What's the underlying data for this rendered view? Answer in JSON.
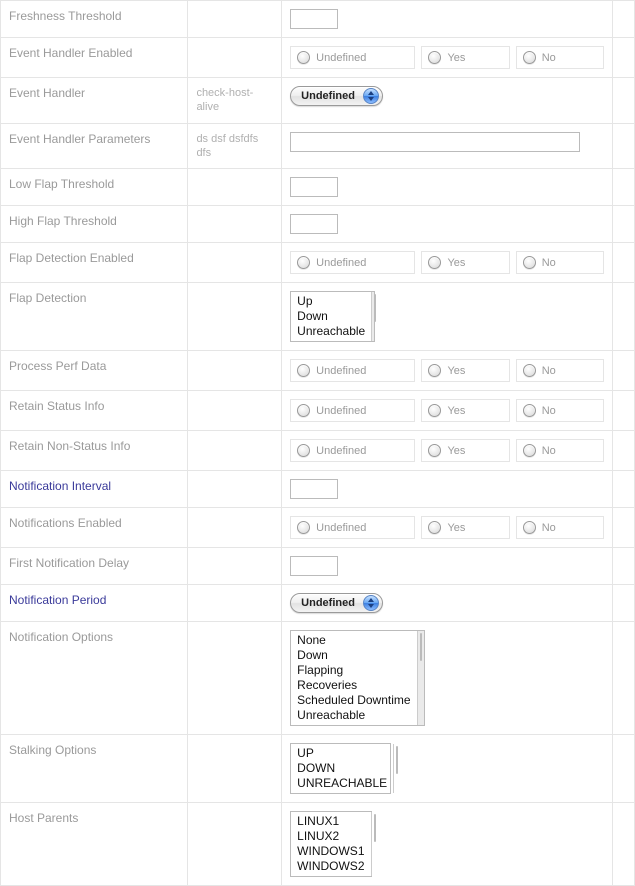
{
  "labels": {
    "freshness_threshold": "Freshness Threshold",
    "event_handler_enabled": "Event Handler Enabled",
    "event_handler": "Event Handler",
    "event_handler_params": "Event Handler Parameters",
    "low_flap": "Low Flap Threshold",
    "high_flap": "High Flap Threshold",
    "flap_detection_enabled": "Flap Detection Enabled",
    "flap_detection": "Flap Detection",
    "process_perf": "Process Perf Data",
    "retain_status": "Retain Status Info",
    "retain_nonstatus": "Retain Non-Status Info",
    "notif_interval": "Notification Interval",
    "notif_enabled": "Notifications Enabled",
    "first_notif_delay": "First Notification Delay",
    "notif_period": "Notification Period",
    "notif_options": "Notification Options",
    "stalking_options": "Stalking Options",
    "host_parents": "Host Parents"
  },
  "mid": {
    "event_handler": "check-host-alive",
    "event_handler_params": "ds dsf dsfdfs dfs"
  },
  "radio": {
    "undefined": "Undefined",
    "yes": "Yes",
    "no": "No"
  },
  "selects": {
    "event_handler": "Undefined",
    "notif_period": "Undefined"
  },
  "lists": {
    "flap_detection": [
      "Up",
      "Down",
      "Unreachable"
    ],
    "notif_options": [
      "None",
      "Down",
      "Flapping",
      "Recoveries",
      "Scheduled Downtime",
      "Unreachable"
    ],
    "stalking_options": [
      "UP",
      "DOWN",
      "UNREACHABLE"
    ],
    "host_parents": [
      "LINUX1",
      "LINUX2",
      "WINDOWS1",
      "WINDOWS2"
    ]
  }
}
